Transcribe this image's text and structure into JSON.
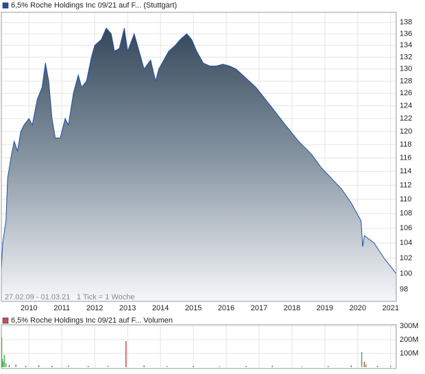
{
  "chart_data": [
    {
      "type": "area",
      "series": [
        {
          "name": "6,5% Roche Holdings Inc 09/21 auf F... (Stuttgart)",
          "color": "#1f4fa8",
          "x": [
            2009.16,
            2009.2,
            2009.3,
            2009.35,
            2009.45,
            2009.55,
            2009.65,
            2009.75,
            2009.85,
            2010.0,
            2010.1,
            2010.25,
            2010.4,
            2010.5,
            2010.6,
            2010.7,
            2010.8,
            2010.95,
            2011.1,
            2011.2,
            2011.35,
            2011.5,
            2011.6,
            2011.75,
            2011.9,
            2012.0,
            2012.2,
            2012.35,
            2012.5,
            2012.6,
            2012.75,
            2012.9,
            2013.0,
            2013.2,
            2013.35,
            2013.5,
            2013.7,
            2013.85,
            2013.95,
            2014.1,
            2014.25,
            2014.45,
            2014.6,
            2014.8,
            2014.95,
            2015.1,
            2015.3,
            2015.5,
            2015.7,
            2015.9,
            2016.1,
            2016.3,
            2016.6,
            2016.9,
            2017.2,
            2017.5,
            2017.8,
            2018.2,
            2018.6,
            2018.9,
            2019.2,
            2019.5,
            2019.8,
            2020.1,
            2020.15,
            2020.2,
            2020.5,
            2020.8,
            2021.17
          ],
          "values": [
            100.5,
            104,
            107,
            113,
            116,
            118.5,
            117,
            120,
            121,
            122,
            121,
            125,
            127,
            131,
            128,
            122,
            119,
            119,
            122,
            121,
            126,
            129,
            127,
            128,
            132,
            134,
            135,
            137,
            136,
            133,
            133.5,
            137,
            133,
            136,
            133,
            130,
            131.5,
            128,
            130,
            131.5,
            133,
            134,
            135,
            136,
            135,
            133,
            131,
            130.5,
            130.5,
            130.8,
            130.5,
            130,
            128.5,
            127,
            125,
            123,
            121,
            118.5,
            116.5,
            114.5,
            113,
            111.5,
            109.5,
            107,
            103.5,
            105,
            104,
            102,
            100
          ]
        }
      ],
      "xlim": [
        2009.16,
        2021.17
      ],
      "xticks": [
        2010,
        2011,
        2012,
        2013,
        2014,
        2015,
        2016,
        2017,
        2018,
        2019,
        2020,
        2021
      ],
      "ylim": [
        96.5,
        139.8
      ],
      "yticks": [
        98,
        100,
        102,
        104,
        106,
        108,
        110,
        112,
        114,
        116,
        118,
        120,
        122,
        124,
        126,
        128,
        130,
        132,
        134,
        136,
        138
      ],
      "log_scale": true,
      "grid": true,
      "annotations": [
        "27.02.09 - 01.03.21",
        "1 Tick = 1 Woche"
      ]
    },
    {
      "type": "bar",
      "series": [
        {
          "name": "6,5% Roche Holdings Inc 09/21 auf F... Volumen",
          "color": "#c0504d",
          "x": [
            2009.17,
            2009.19,
            2009.21,
            2009.25,
            2009.3,
            2009.4,
            2009.6,
            2009.9,
            2010.3,
            2010.7,
            2011.2,
            2011.8,
            2012.4,
            2012.95,
            2013.5,
            2014.2,
            2015.0,
            2015.8,
            2016.6,
            2017.4,
            2018.3,
            2019.1,
            2019.8,
            2020.12,
            2020.2,
            2020.25,
            2020.6,
            2021.0
          ],
          "values": [
            220000000,
            60000000,
            40000000,
            90000000,
            30000000,
            15000000,
            20000000,
            10000000,
            15000000,
            10000000,
            12000000,
            8000000,
            10000000,
            190000000,
            12000000,
            8000000,
            10000000,
            6000000,
            8000000,
            10000000,
            6000000,
            8000000,
            12000000,
            110000000,
            40000000,
            20000000,
            10000000,
            8000000
          ],
          "colors": [
            "#4caf50",
            "#4caf50",
            "#4caf50",
            "#4caf50",
            "#4caf50",
            "#c0504d",
            "#4caf50",
            "#c0504d",
            "#4caf50",
            "#c0504d",
            "#4caf50",
            "#c0504d",
            "#4caf50",
            "#c0504d",
            "#c0504d",
            "#4caf50",
            "#c0504d",
            "#4caf50",
            "#c0504d",
            "#c0504d",
            "#4caf50",
            "#c0504d",
            "#c0504d",
            "#4caf50",
            "#c0504d",
            "#4caf50",
            "#c0504d",
            "#c0504d"
          ]
        }
      ],
      "xlim": [
        2009.16,
        2021.17
      ],
      "xticks": [
        2010,
        2011,
        2012,
        2013,
        2014,
        2015,
        2016,
        2017,
        2018,
        2019,
        2020,
        2021
      ],
      "ylim": [
        -10000000,
        310000000
      ],
      "yticks": [
        {
          "value": 100000000,
          "label": "100M"
        },
        {
          "value": 200000000,
          "label": "200M"
        },
        {
          "value": 300000000,
          "label": "300M"
        }
      ],
      "grid": true
    }
  ]
}
